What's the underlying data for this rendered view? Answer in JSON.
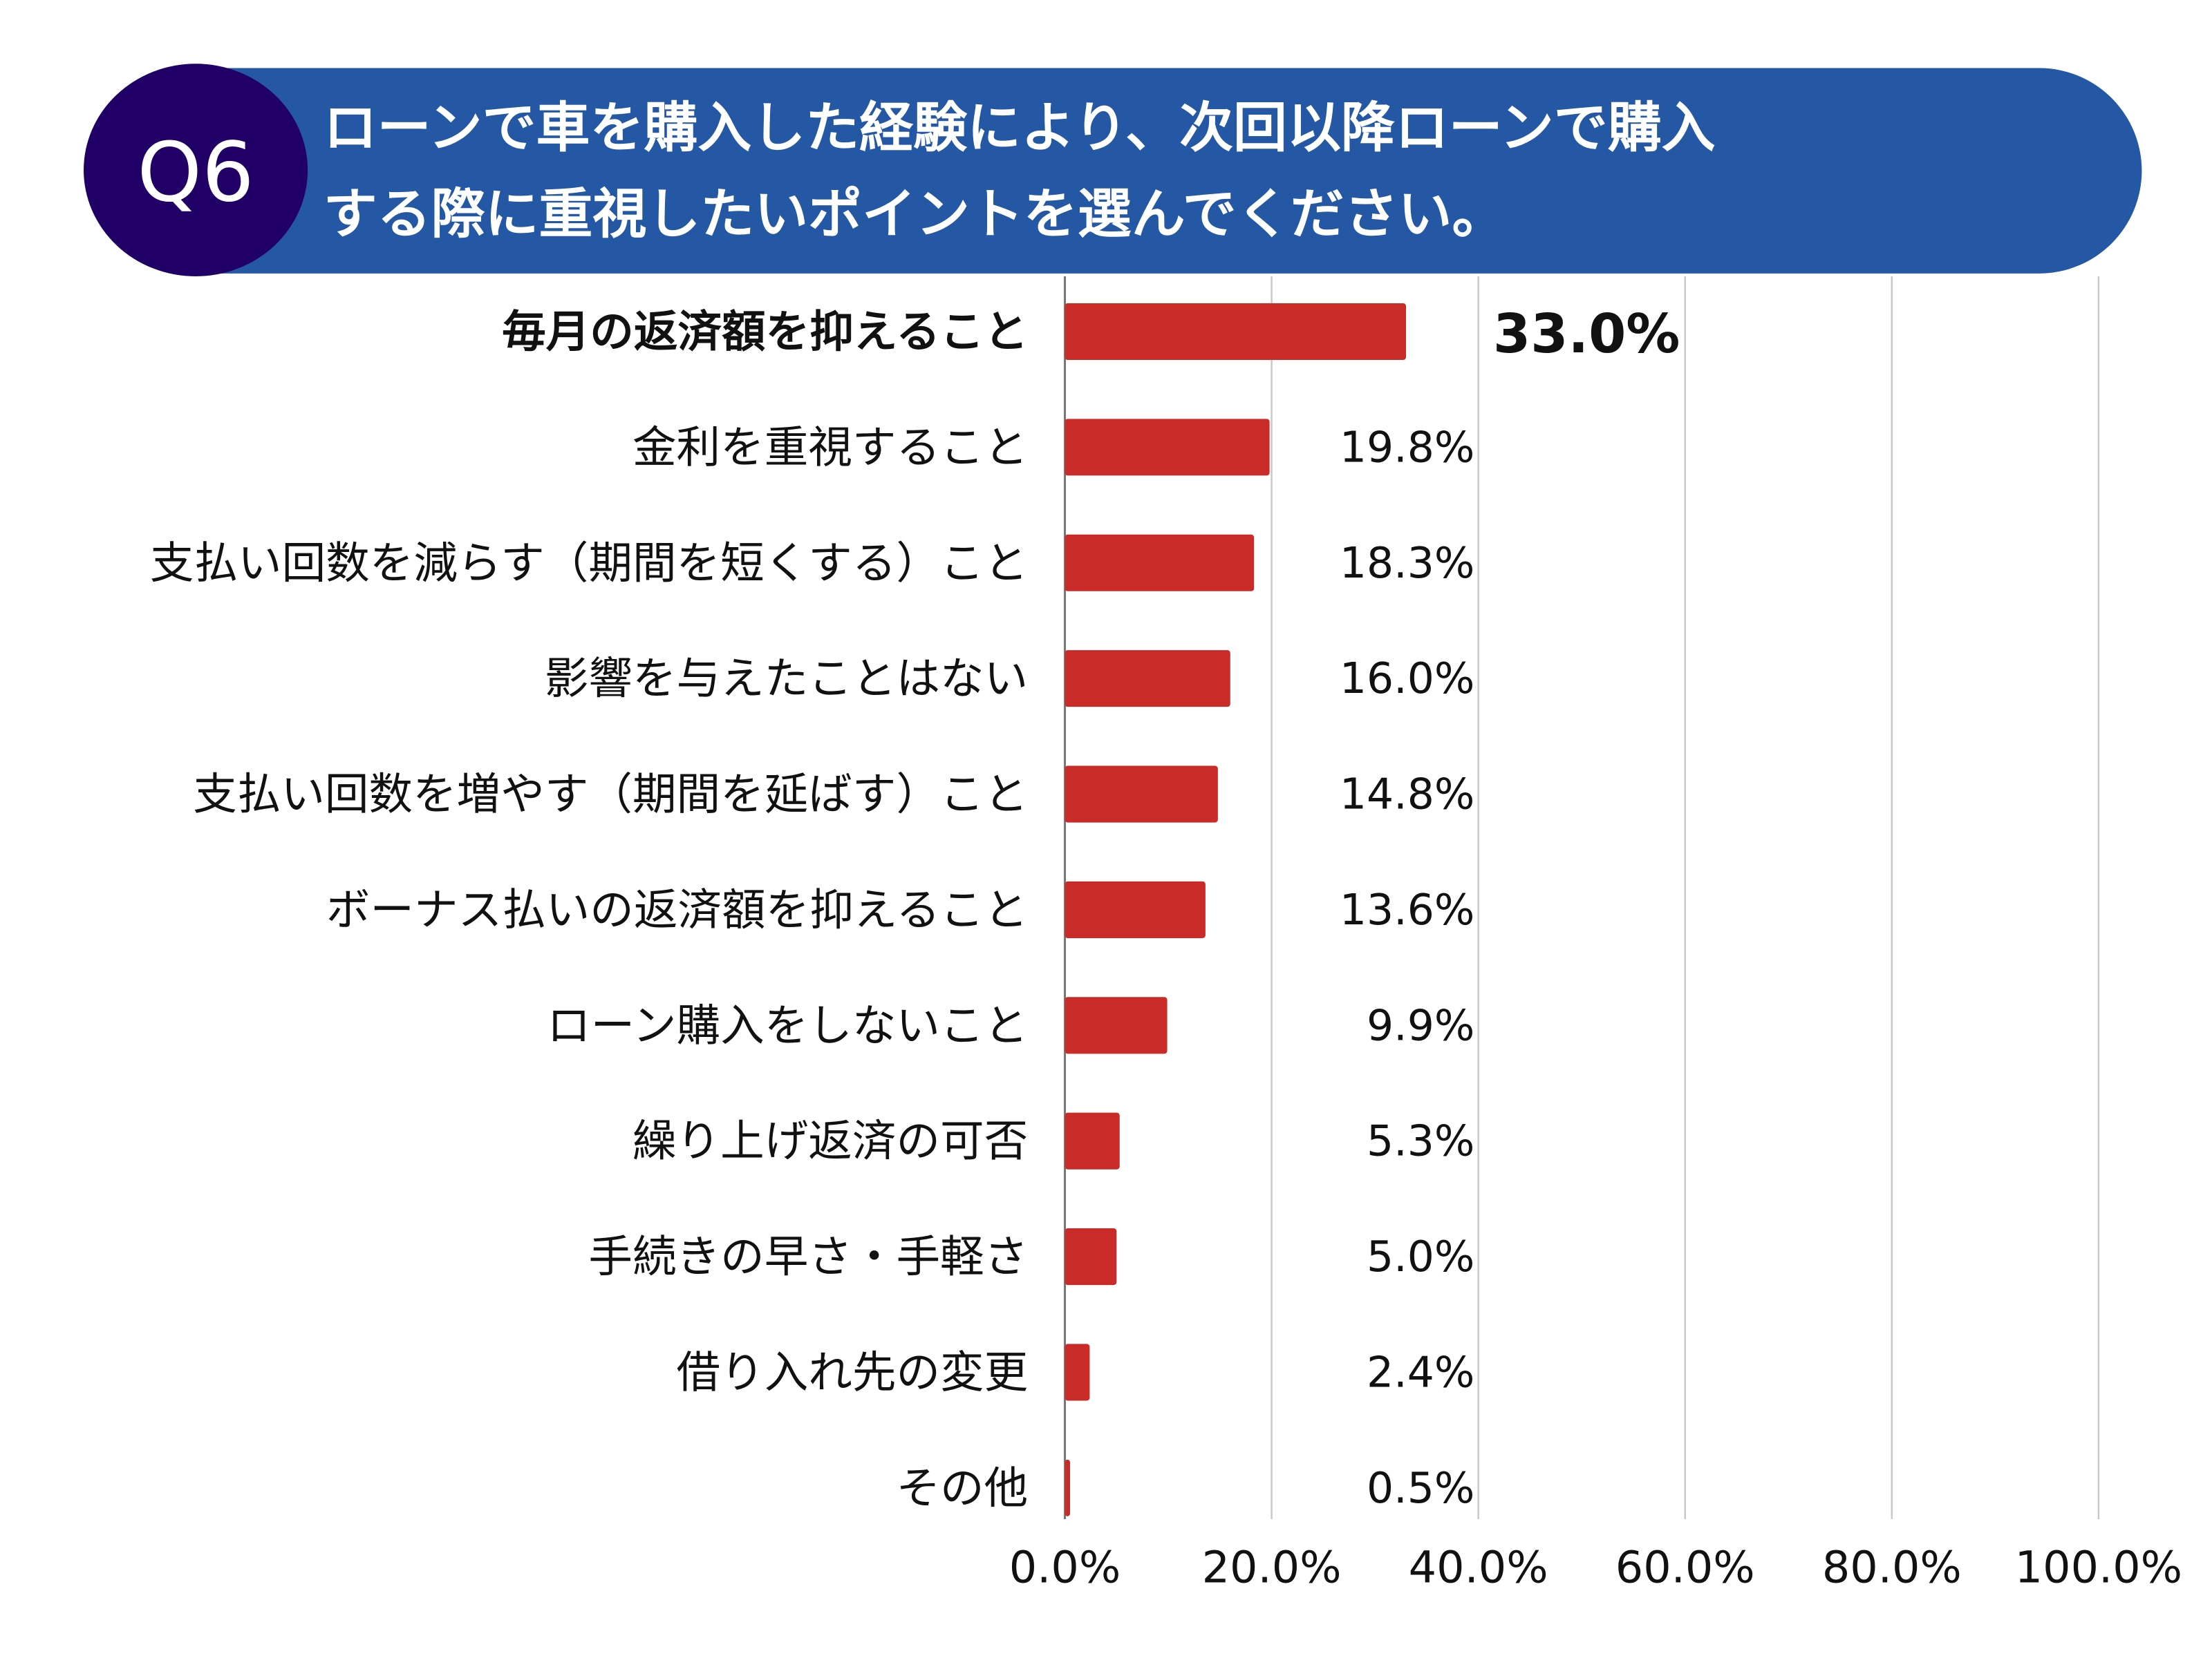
{
  "header": {
    "badge": "Q6",
    "title_line1": "ローンで車を購入した経験により、次回以降ローンで購入",
    "title_line2": "する際に重視したいポイントを選んでください。",
    "colors": {
      "pill": "#2457A4",
      "badge": "#200066",
      "text": "#ffffff"
    }
  },
  "chart_data": {
    "type": "bar",
    "orientation": "horizontal",
    "categories": [
      "毎月の返済額を抑えること",
      "金利を重視すること",
      "支払い回数を減らす（期間を短くする）こと",
      "影響を与えたことはない",
      "支払い回数を増やす（期間を延ばす）こと",
      "ボーナス払いの返済額を抑えること",
      "ローン購入をしないこと",
      "繰り上げ返済の可否",
      "手続きの早さ・手軽さ",
      "借り入れ先の変更",
      "その他"
    ],
    "values": [
      33.0,
      19.8,
      18.3,
      16.0,
      14.8,
      13.6,
      9.9,
      5.3,
      5.0,
      2.4,
      0.5
    ],
    "data_labels": [
      "33.0%",
      "19.8%",
      "18.3%",
      "16.0%",
      "14.8%",
      "13.6%",
      "9.9%",
      "5.3%",
      "5.0%",
      "2.4%",
      "0.5%"
    ],
    "highlighted_index": 0,
    "xlim": [
      0,
      100
    ],
    "x_ticks": [
      "0.0%",
      "20.0%",
      "40.0%",
      "60.0%",
      "80.0%",
      "100.0%"
    ],
    "grid": true,
    "bar_color": "#C92B28",
    "grid_color": "#C8C8C8"
  }
}
